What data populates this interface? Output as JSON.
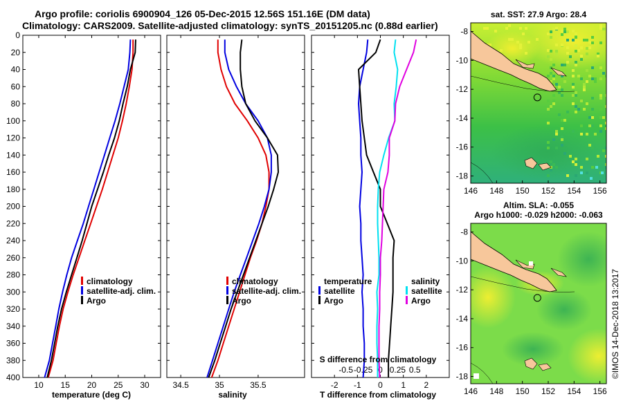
{
  "title": {
    "line1": "Argo profile: coriolis 6900904_126 05-Dec-2015 12.56S 151.16E (DM data)",
    "line2": "Climatology: CARS2009. Satellite-adjusted climatology: synTS_20151205.nc (0.88d earlier)"
  },
  "colors": {
    "climatology": "#e00000",
    "satellite": "#0000e0",
    "argo": "#000000",
    "satellite_s": "#00e0f0",
    "argo_s": "#e000e0",
    "land": "#f7c79b",
    "sst_map_bg": "#3cc83c",
    "sla_map_bg": "#86e050"
  },
  "chart_data": [
    {
      "type": "line",
      "name": "temperature",
      "xlabel": "temperature (deg C)",
      "ylabel": "",
      "xlim": [
        7,
        33
      ],
      "ylim": [
        400,
        0
      ],
      "xticks": [
        10,
        15,
        20,
        25,
        30
      ],
      "xtick_labels": [
        "10",
        "15",
        "20",
        "25",
        "30"
      ],
      "yticks": [
        0,
        20,
        40,
        60,
        80,
        100,
        120,
        140,
        160,
        180,
        200,
        220,
        240,
        260,
        280,
        300,
        320,
        340,
        360,
        380,
        400
      ],
      "ytick_labels": [
        "0",
        "20",
        "40",
        "60",
        "80",
        "100",
        "120",
        "140",
        "160",
        "180",
        "200",
        "220",
        "240",
        "260",
        "280",
        "300",
        "320",
        "340",
        "360",
        "380",
        "400"
      ],
      "series": [
        {
          "name": "climatology",
          "color_key": "climatology",
          "x": [
            27.8,
            27.8,
            27.6,
            27.1,
            26.5,
            25.8,
            25.0,
            24.0,
            23.0,
            22.0,
            20.9,
            19.8,
            18.7,
            17.6,
            16.5,
            15.5,
            14.6,
            13.9,
            13.3,
            12.7,
            11.8
          ],
          "y": [
            5,
            20,
            40,
            60,
            80,
            100,
            120,
            140,
            160,
            180,
            200,
            220,
            240,
            260,
            280,
            300,
            320,
            340,
            360,
            380,
            400
          ]
        },
        {
          "name": "satellite-adj. clim.",
          "color_key": "satellite",
          "x": [
            27.3,
            27.2,
            26.9,
            26.1,
            25.3,
            24.4,
            23.4,
            22.4,
            21.4,
            20.4,
            19.4,
            18.4,
            17.3,
            16.2,
            15.3,
            14.5,
            13.8,
            13.2,
            12.6,
            12.0,
            11.1
          ],
          "y": [
            5,
            20,
            40,
            60,
            80,
            100,
            120,
            140,
            160,
            180,
            200,
            220,
            240,
            260,
            280,
            300,
            320,
            340,
            360,
            380,
            400
          ]
        },
        {
          "name": "Argo",
          "color_key": "argo",
          "x": [
            28.3,
            28.2,
            27.3,
            26.7,
            25.9,
            25.2,
            24.3,
            23.2,
            22.2,
            21.1,
            20.0,
            19.1,
            18.2,
            17.2,
            16.2,
            15.2,
            14.3,
            13.6,
            13.0,
            12.4,
            11.6
          ],
          "y": [
            5,
            20,
            40,
            60,
            80,
            100,
            120,
            140,
            160,
            180,
            200,
            220,
            240,
            260,
            280,
            300,
            320,
            340,
            360,
            380,
            400
          ]
        }
      ],
      "legend": [
        "climatology",
        "satellite-adj. clim.",
        "Argo"
      ],
      "legend_position": "lower-right"
    },
    {
      "type": "line",
      "name": "salinity",
      "xlabel": "salinity",
      "ylabel": "",
      "xlim": [
        34.32,
        36.1
      ],
      "ylim": [
        400,
        0
      ],
      "xticks": [
        34.5,
        35,
        35.5
      ],
      "xtick_labels": [
        "34.5",
        "35",
        "35.5"
      ],
      "yticks": [
        0,
        20,
        40,
        60,
        80,
        100,
        120,
        140,
        160,
        180,
        200,
        220,
        240,
        260,
        280,
        300,
        320,
        340,
        360,
        380,
        400
      ],
      "series": [
        {
          "name": "climatology",
          "color_key": "climatology",
          "x": [
            34.98,
            34.98,
            35.02,
            35.09,
            35.2,
            35.36,
            35.5,
            35.6,
            35.64,
            35.64,
            35.6,
            35.55,
            35.48,
            35.4,
            35.33,
            35.26,
            35.19,
            35.12,
            35.05,
            34.98,
            34.9
          ],
          "y": [
            5,
            20,
            40,
            60,
            80,
            100,
            120,
            140,
            160,
            180,
            200,
            220,
            240,
            260,
            280,
            300,
            320,
            340,
            360,
            380,
            400
          ]
        },
        {
          "name": "satellite-adj. clim.",
          "color_key": "satellite",
          "x": [
            35.07,
            35.07,
            35.12,
            35.22,
            35.34,
            35.5,
            35.62,
            35.67,
            35.67,
            35.64,
            35.58,
            35.51,
            35.43,
            35.35,
            35.27,
            35.19,
            35.12,
            35.05,
            34.98,
            34.91,
            34.84
          ],
          "y": [
            5,
            20,
            40,
            60,
            80,
            100,
            120,
            140,
            160,
            180,
            200,
            220,
            240,
            260,
            280,
            300,
            320,
            340,
            360,
            380,
            400
          ]
        },
        {
          "name": "Argo",
          "color_key": "argo",
          "x": [
            35.29,
            35.27,
            35.27,
            35.29,
            35.34,
            35.46,
            35.62,
            35.75,
            35.76,
            35.7,
            35.63,
            35.55,
            35.47,
            35.39,
            35.31,
            35.23,
            35.15,
            35.08,
            35.01,
            34.94,
            34.86
          ],
          "y": [
            5,
            20,
            40,
            60,
            80,
            100,
            120,
            140,
            160,
            180,
            200,
            220,
            240,
            260,
            280,
            300,
            320,
            340,
            360,
            380,
            400
          ]
        }
      ],
      "legend": [
        "climatology",
        "satellite-adj. clim.",
        "Argo"
      ],
      "legend_position": "lower-right"
    },
    {
      "type": "line",
      "name": "differences",
      "xlabel": "T difference from climatology",
      "xlabel_top": "S difference from climatology",
      "xlim": [
        -3,
        3
      ],
      "ylim": [
        400,
        0
      ],
      "xticks": [
        -2,
        -1,
        0,
        1,
        2
      ],
      "xtick_labels": [
        "-2",
        "-1",
        "0",
        "1",
        "2"
      ],
      "s_xticks": [
        -0.5,
        -0.25,
        0,
        0.25,
        0.5
      ],
      "s_xtick_labels": [
        "-0.5",
        "-0.25",
        "0",
        "0.25",
        "0.5"
      ],
      "s_scale": 3,
      "yticks": [
        0,
        20,
        40,
        60,
        80,
        100,
        120,
        140,
        160,
        180,
        200,
        220,
        240,
        260,
        280,
        300,
        320,
        340,
        360,
        380,
        400
      ],
      "series": [
        {
          "name": "temperature satellite",
          "color_key": "satellite",
          "x": [
            -0.55,
            -0.6,
            -0.75,
            -0.9,
            -0.95,
            -0.9,
            -0.85,
            -0.85,
            -0.8,
            -0.85,
            -0.9,
            -0.85,
            -0.85,
            -0.8,
            -0.75,
            -0.8,
            -0.75,
            -0.75,
            -0.7,
            -0.7,
            -0.75
          ],
          "y": [
            5,
            20,
            40,
            60,
            80,
            100,
            120,
            140,
            160,
            180,
            200,
            220,
            240,
            260,
            280,
            300,
            320,
            340,
            360,
            380,
            400
          ]
        },
        {
          "name": "temperature Argo",
          "color_key": "argo",
          "x": [
            0.0,
            -0.2,
            -0.95,
            -0.9,
            -0.85,
            -0.8,
            -0.7,
            -0.6,
            -0.3,
            0.0,
            0.0,
            0.3,
            0.6,
            0.55,
            0.55,
            0.55,
            0.5,
            0.45,
            0.4,
            0.35,
            0.35
          ],
          "y": [
            5,
            20,
            40,
            60,
            80,
            100,
            120,
            140,
            160,
            180,
            200,
            220,
            240,
            260,
            280,
            300,
            320,
            340,
            360,
            380,
            400
          ]
        },
        {
          "name": "salinity satellite",
          "color_key": "satellite_s",
          "x": [
            0.22,
            0.2,
            0.25,
            0.23,
            0.2,
            0.21,
            0.12,
            0.05,
            -0.01,
            -0.03,
            -0.04,
            -0.04,
            -0.03,
            -0.02,
            -0.02,
            -0.05,
            -0.04,
            -0.05,
            -0.05,
            -0.04,
            -0.04
          ],
          "y": [
            5,
            20,
            40,
            60,
            80,
            100,
            120,
            140,
            160,
            180,
            200,
            220,
            240,
            260,
            280,
            300,
            320,
            340,
            360,
            380,
            400
          ]
        },
        {
          "name": "salinity Argo",
          "color_key": "argo_s",
          "x": [
            0.52,
            0.48,
            0.38,
            0.28,
            0.22,
            0.21,
            0.13,
            0.13,
            0.11,
            0.05,
            0.04,
            0.03,
            0.02,
            0.0,
            0.0,
            -0.01,
            -0.01,
            -0.02,
            -0.02,
            -0.02,
            -0.01
          ],
          "y": [
            5,
            20,
            40,
            60,
            80,
            100,
            120,
            140,
            160,
            180,
            200,
            220,
            240,
            260,
            280,
            300,
            320,
            340,
            360,
            380,
            400
          ]
        }
      ],
      "legend_left_title": "temperature",
      "legend_left": [
        "satellite",
        "Argo"
      ],
      "legend_right_title": "salinity",
      "legend_right": [
        "satellite",
        "Argo"
      ],
      "legend_position": "lower"
    },
    {
      "type": "heatmap",
      "name": "sst_map",
      "title": "sat. SST: 27.9 Argo: 28.4",
      "xlim": [
        146,
        156.5
      ],
      "ylim": [
        -18.5,
        -7.4
      ],
      "xticks": [
        146,
        148,
        150,
        152,
        154,
        156
      ],
      "yticks": [
        -8,
        -10,
        -12,
        -14,
        -16,
        -18
      ],
      "xtick_labels": [
        "146",
        "148",
        "150",
        "152",
        "154",
        "156"
      ],
      "ytick_labels": [
        "-8",
        "-10",
        "-12",
        "-14",
        "-16",
        "-18"
      ],
      "argo_position": {
        "lon": 151.16,
        "lat": -12.56
      }
    },
    {
      "type": "heatmap",
      "name": "sla_map",
      "title": "Altim. SLA: -0.055",
      "subtitle": "Argo h1000: -0.029 h2000: -0.063",
      "xlim": [
        146,
        156.5
      ],
      "ylim": [
        -18.5,
        -7.4
      ],
      "xticks": [
        146,
        148,
        150,
        152,
        154,
        156
      ],
      "yticks": [
        -8,
        -10,
        -12,
        -14,
        -16,
        -18
      ],
      "xtick_labels": [
        "146",
        "148",
        "150",
        "152",
        "154",
        "156"
      ],
      "ytick_labels": [
        "-8",
        "-10",
        "-12",
        "-14",
        "-16",
        "-18"
      ],
      "argo_position": {
        "lon": 151.16,
        "lat": -12.56
      }
    }
  ],
  "watermark": "©IMOS 14-Dec-2018 13:2017"
}
